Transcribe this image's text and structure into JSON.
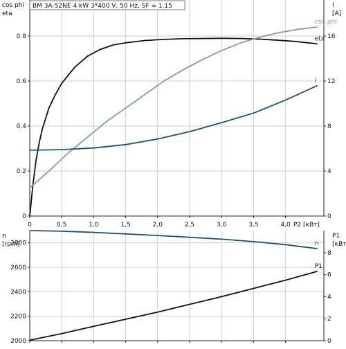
{
  "chart_data": [
    {
      "type": "line",
      "title": "BM 3A-52NE   4 kW   3*400 V, 50 Hz, SF = 1.15",
      "xlabel": "P2 [кВт]",
      "xlim": [
        0,
        4.6
      ],
      "xticks": [
        "0",
        "0,5",
        "1,0",
        "1,5",
        "2,0",
        "2,5",
        "3,0",
        "3,5",
        "4,0"
      ],
      "xtick_values": [
        0,
        0.5,
        1.0,
        1.5,
        2.0,
        2.5,
        3.0,
        3.5,
        4.0
      ],
      "y_left": {
        "label_lines": [
          "cos phi",
          "eta"
        ],
        "lim": [
          0,
          0.96
        ],
        "ticks": [
          "0",
          "0.2",
          "0.4",
          "0.6",
          "0.8"
        ],
        "tick_values": [
          0,
          0.2,
          0.4,
          0.6,
          0.8
        ]
      },
      "y_right": {
        "label_lines": [
          "I",
          "[A]"
        ],
        "lim": [
          0,
          19.2
        ],
        "ticks": [
          "0",
          "4",
          "8",
          "12",
          "16"
        ],
        "tick_values": [
          0,
          4,
          8,
          12,
          16
        ]
      },
      "grid": true,
      "series": [
        {
          "name": "eta",
          "axis": "left",
          "color": "#111111",
          "x": [
            0,
            0.05,
            0.1,
            0.15,
            0.2,
            0.3,
            0.4,
            0.5,
            0.7,
            0.9,
            1.1,
            1.3,
            1.5,
            1.8,
            2.1,
            2.4,
            2.7,
            3.0,
            3.3,
            3.6,
            3.9,
            4.15,
            4.5
          ],
          "y": [
            0,
            0.14,
            0.25,
            0.33,
            0.39,
            0.48,
            0.54,
            0.59,
            0.66,
            0.71,
            0.74,
            0.76,
            0.77,
            0.78,
            0.785,
            0.788,
            0.789,
            0.79,
            0.789,
            0.786,
            0.781,
            0.776,
            0.765
          ]
        },
        {
          "name": "cos phi",
          "axis": "left",
          "color": "#7f9bb3",
          "x": [
            0,
            0.3,
            0.6,
            0.9,
            1.2,
            1.5,
            1.8,
            2.1,
            2.4,
            2.7,
            3.0,
            3.3,
            3.6,
            3.9,
            4.2,
            4.5
          ],
          "y": [
            0.125,
            0.2,
            0.28,
            0.35,
            0.42,
            0.48,
            0.54,
            0.6,
            0.65,
            0.695,
            0.735,
            0.77,
            0.795,
            0.815,
            0.83,
            0.84
          ]
        },
        {
          "name": "I",
          "axis": "right",
          "color": "#1f4e79",
          "x": [
            0,
            0.5,
            1.0,
            1.5,
            2.0,
            2.5,
            3.0,
            3.5,
            4.0,
            4.5
          ],
          "y": [
            5.85,
            5.9,
            6.05,
            6.35,
            6.85,
            7.5,
            8.3,
            9.15,
            10.3,
            11.6
          ]
        }
      ]
    },
    {
      "type": "line",
      "y_left": {
        "label_lines": [
          "n",
          "[rpm]"
        ],
        "lim": [
          2000,
          2900
        ],
        "ticks": [
          "2000",
          "2200",
          "2400",
          "2600",
          "2800"
        ],
        "tick_values": [
          2000,
          2200,
          2400,
          2600,
          2800
        ]
      },
      "y_right": {
        "label_lines": [
          "P1",
          "[кВт]"
        ],
        "lim": [
          0,
          10
        ],
        "ticks": [
          "0",
          "2",
          "4",
          "6",
          "8"
        ],
        "tick_values": [
          0,
          2,
          4,
          6,
          8
        ]
      },
      "grid": true,
      "series": [
        {
          "name": "n",
          "axis": "left",
          "color": "#1f4e79",
          "x": [
            0,
            0.5,
            1.0,
            1.5,
            2.0,
            2.5,
            3.0,
            3.5,
            4.0,
            4.5
          ],
          "y": [
            2900,
            2895,
            2885,
            2873,
            2860,
            2845,
            2830,
            2810,
            2785,
            2752
          ]
        },
        {
          "name": "P1",
          "axis": "right",
          "color": "#111111",
          "x": [
            0,
            0.5,
            1.0,
            1.5,
            2.0,
            2.5,
            3.0,
            3.5,
            4.0,
            4.5
          ],
          "y": [
            0.05,
            0.65,
            1.3,
            1.95,
            2.6,
            3.3,
            4.0,
            4.75,
            5.5,
            6.3
          ]
        }
      ]
    }
  ]
}
